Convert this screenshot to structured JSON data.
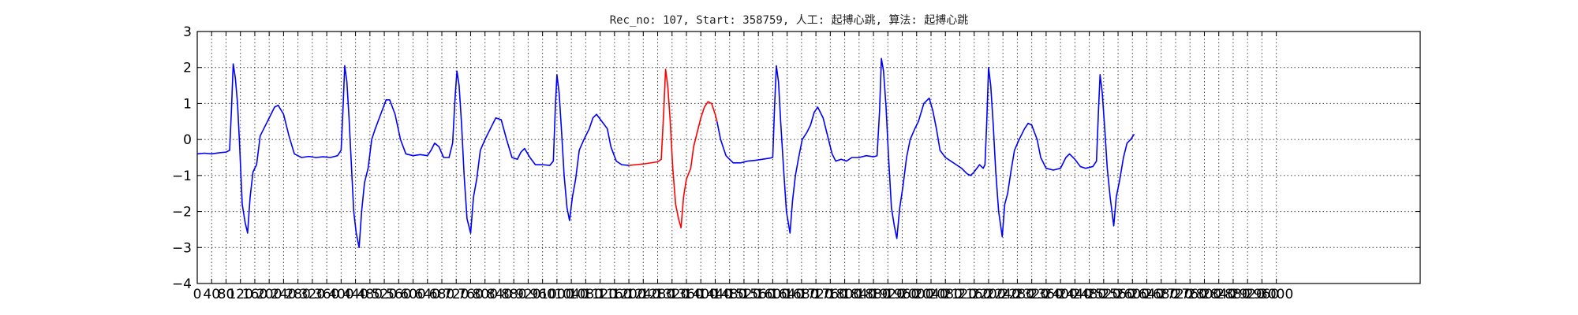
{
  "chart_data": {
    "type": "line",
    "title": "Rec_no: 107, Start: 358759, 人工: 起搏心跳, 算法: 起搏心跳",
    "xlabel": "",
    "ylabel": "",
    "xlim": [
      0,
      3400
    ],
    "ylim": [
      -4,
      3
    ],
    "yticks": [
      3,
      2,
      1,
      0,
      -1,
      -2,
      -3,
      -4
    ],
    "xticks": [
      0,
      40,
      80,
      120,
      160,
      200,
      240,
      280,
      320,
      360,
      400,
      440,
      480,
      520,
      560,
      600,
      640,
      680,
      720,
      760,
      800,
      840,
      880,
      920,
      960,
      1000,
      1040,
      1080,
      1120,
      1160,
      1200,
      1240,
      1280,
      1320,
      1360,
      1400,
      1440,
      1480,
      1520,
      1560,
      1600,
      1640,
      1680,
      1720,
      1760,
      1800,
      1840,
      1880,
      1920,
      1960,
      2000,
      2040,
      2080,
      2120,
      2160,
      2200,
      2240,
      2280,
      2320,
      2360,
      2400,
      2440,
      2480,
      2520,
      2560,
      2600,
      2640,
      2680,
      2720,
      2760,
      2800,
      2840,
      2880,
      2920,
      2960,
      3000
    ],
    "grid": true,
    "series": [
      {
        "color": "#0000ff",
        "points": [
          [
            0,
            -0.4
          ],
          [
            20,
            -0.38
          ],
          [
            40,
            -0.4
          ],
          [
            60,
            -0.37
          ],
          [
            80,
            -0.35
          ],
          [
            90,
            -0.3
          ],
          [
            95,
            0.8
          ],
          [
            100,
            2.1
          ],
          [
            106,
            1.7
          ],
          [
            112,
            1.0
          ],
          [
            118,
            -0.2
          ],
          [
            125,
            -1.8
          ],
          [
            133,
            -2.3
          ],
          [
            140,
            -2.6
          ],
          [
            147,
            -1.6
          ],
          [
            155,
            -0.9
          ],
          [
            165,
            -0.7
          ],
          [
            175,
            0.1
          ],
          [
            185,
            0.3
          ],
          [
            200,
            0.6
          ],
          [
            215,
            0.9
          ],
          [
            225,
            0.95
          ],
          [
            240,
            0.7
          ],
          [
            255,
            0.1
          ],
          [
            270,
            -0.4
          ],
          [
            290,
            -0.5
          ],
          [
            310,
            -0.47
          ],
          [
            330,
            -0.5
          ],
          [
            350,
            -0.48
          ],
          [
            370,
            -0.5
          ],
          [
            390,
            -0.45
          ],
          [
            400,
            -0.3
          ],
          [
            405,
            0.8
          ],
          [
            410,
            2.05
          ],
          [
            416,
            1.6
          ],
          [
            422,
            0.6
          ],
          [
            428,
            -0.6
          ],
          [
            435,
            -2.0
          ],
          [
            442,
            -2.6
          ],
          [
            450,
            -3.0
          ],
          [
            457,
            -2.0
          ],
          [
            465,
            -1.2
          ],
          [
            475,
            -0.8
          ],
          [
            485,
            0.0
          ],
          [
            495,
            0.3
          ],
          [
            510,
            0.7
          ],
          [
            525,
            1.1
          ],
          [
            535,
            1.1
          ],
          [
            550,
            0.7
          ],
          [
            565,
            0.0
          ],
          [
            580,
            -0.4
          ],
          [
            600,
            -0.45
          ],
          [
            620,
            -0.42
          ],
          [
            640,
            -0.45
          ],
          [
            650,
            -0.3
          ],
          [
            660,
            -0.1
          ],
          [
            672,
            -0.2
          ],
          [
            685,
            -0.5
          ],
          [
            700,
            -0.5
          ],
          [
            710,
            -0.1
          ],
          [
            717,
            1.2
          ],
          [
            722,
            1.9
          ],
          [
            728,
            1.5
          ],
          [
            735,
            0.4
          ],
          [
            742,
            -1.0
          ],
          [
            750,
            -2.2
          ],
          [
            760,
            -2.6
          ],
          [
            768,
            -1.6
          ],
          [
            777,
            -1.1
          ],
          [
            787,
            -0.3
          ],
          [
            800,
            0.0
          ],
          [
            815,
            0.3
          ],
          [
            830,
            0.6
          ],
          [
            845,
            0.55
          ],
          [
            860,
            0.0
          ],
          [
            875,
            -0.5
          ],
          [
            890,
            -0.55
          ],
          [
            900,
            -0.35
          ],
          [
            910,
            -0.25
          ],
          [
            925,
            -0.5
          ],
          [
            940,
            -0.7
          ],
          [
            960,
            -0.7
          ],
          [
            980,
            -0.72
          ],
          [
            990,
            -0.6
          ],
          [
            996,
            1.0
          ],
          [
            1000,
            1.8
          ],
          [
            1006,
            1.3
          ],
          [
            1013,
            0.2
          ],
          [
            1020,
            -1.0
          ],
          [
            1028,
            -1.9
          ],
          [
            1035,
            -2.25
          ],
          [
            1043,
            -1.6
          ],
          [
            1052,
            -1.1
          ],
          [
            1062,
            -0.3
          ],
          [
            1075,
            0.0
          ],
          [
            1090,
            0.3
          ],
          [
            1100,
            0.6
          ],
          [
            1110,
            0.7
          ],
          [
            1125,
            0.5
          ],
          [
            1140,
            0.3
          ],
          [
            1150,
            -0.2
          ],
          [
            1165,
            -0.6
          ],
          [
            1180,
            -0.7
          ],
          [
            1200,
            -0.72
          ]
        ]
      },
      {
        "color": "#ff0000",
        "points": [
          [
            1200,
            -0.72
          ],
          [
            1220,
            -0.7
          ],
          [
            1240,
            -0.68
          ],
          [
            1260,
            -0.65
          ],
          [
            1280,
            -0.62
          ],
          [
            1290,
            -0.55
          ],
          [
            1297,
            0.8
          ],
          [
            1302,
            1.95
          ],
          [
            1308,
            1.5
          ],
          [
            1315,
            0.5
          ],
          [
            1322,
            -0.8
          ],
          [
            1330,
            -1.8
          ],
          [
            1338,
            -2.2
          ],
          [
            1345,
            -2.45
          ],
          [
            1352,
            -1.6
          ],
          [
            1360,
            -1.1
          ],
          [
            1372,
            -0.8
          ],
          [
            1380,
            -0.2
          ],
          [
            1390,
            0.2
          ],
          [
            1400,
            0.6
          ],
          [
            1410,
            0.9
          ],
          [
            1420,
            1.05
          ],
          [
            1430,
            1.0
          ],
          [
            1440,
            0.7
          ],
          [
            1445,
            0.5
          ]
        ]
      },
      {
        "color": "#0000ff",
        "points": [
          [
            1445,
            0.5
          ],
          [
            1455,
            0.0
          ],
          [
            1470,
            -0.45
          ],
          [
            1490,
            -0.65
          ],
          [
            1510,
            -0.65
          ],
          [
            1530,
            -0.6
          ],
          [
            1550,
            -0.58
          ],
          [
            1570,
            -0.55
          ],
          [
            1590,
            -0.52
          ],
          [
            1600,
            -0.5
          ],
          [
            1605,
            0.9
          ],
          [
            1610,
            2.05
          ],
          [
            1616,
            1.6
          ],
          [
            1622,
            0.5
          ],
          [
            1630,
            -0.8
          ],
          [
            1638,
            -2.0
          ],
          [
            1648,
            -2.6
          ],
          [
            1655,
            -1.7
          ],
          [
            1663,
            -1.0
          ],
          [
            1672,
            -0.5
          ],
          [
            1682,
            0.0
          ],
          [
            1695,
            0.2
          ],
          [
            1705,
            0.4
          ],
          [
            1715,
            0.75
          ],
          [
            1725,
            0.9
          ],
          [
            1740,
            0.6
          ],
          [
            1755,
            0.0
          ],
          [
            1765,
            -0.4
          ],
          [
            1775,
            -0.6
          ],
          [
            1790,
            -0.55
          ],
          [
            1805,
            -0.6
          ],
          [
            1820,
            -0.5
          ],
          [
            1840,
            -0.5
          ],
          [
            1860,
            -0.45
          ],
          [
            1880,
            -0.48
          ],
          [
            1890,
            -0.45
          ],
          [
            1897,
            0.8
          ],
          [
            1902,
            2.25
          ],
          [
            1908,
            1.9
          ],
          [
            1915,
            0.9
          ],
          [
            1922,
            -0.5
          ],
          [
            1930,
            -1.9
          ],
          [
            1938,
            -2.4
          ],
          [
            1945,
            -2.75
          ],
          [
            1953,
            -1.9
          ],
          [
            1962,
            -1.3
          ],
          [
            1972,
            -0.5
          ],
          [
            1982,
            0.0
          ],
          [
            1995,
            0.3
          ],
          [
            2005,
            0.5
          ],
          [
            2020,
            1.0
          ],
          [
            2035,
            1.15
          ],
          [
            2045,
            0.8
          ],
          [
            2055,
            0.3
          ],
          [
            2065,
            -0.3
          ],
          [
            2080,
            -0.5
          ],
          [
            2095,
            -0.6
          ],
          [
            2110,
            -0.7
          ],
          [
            2125,
            -0.8
          ],
          [
            2140,
            -0.95
          ],
          [
            2150,
            -1.0
          ],
          [
            2160,
            -0.9
          ],
          [
            2175,
            -0.7
          ],
          [
            2185,
            -0.8
          ],
          [
            2190,
            -0.7
          ],
          [
            2195,
            0.5
          ],
          [
            2200,
            2.0
          ],
          [
            2206,
            1.5
          ],
          [
            2213,
            0.4
          ],
          [
            2220,
            -0.9
          ],
          [
            2228,
            -2.0
          ],
          [
            2238,
            -2.7
          ],
          [
            2245,
            -1.8
          ],
          [
            2253,
            -1.5
          ],
          [
            2262,
            -0.9
          ],
          [
            2272,
            -0.3
          ],
          [
            2285,
            0.0
          ],
          [
            2300,
            0.3
          ],
          [
            2310,
            0.45
          ],
          [
            2320,
            0.4
          ],
          [
            2335,
            0.0
          ],
          [
            2345,
            -0.5
          ],
          [
            2360,
            -0.8
          ],
          [
            2380,
            -0.85
          ],
          [
            2400,
            -0.8
          ],
          [
            2415,
            -0.5
          ],
          [
            2425,
            -0.4
          ],
          [
            2440,
            -0.55
          ],
          [
            2455,
            -0.75
          ],
          [
            2470,
            -0.8
          ],
          [
            2490,
            -0.75
          ],
          [
            2500,
            -0.6
          ],
          [
            2506,
            0.9
          ],
          [
            2510,
            1.8
          ],
          [
            2516,
            1.3
          ],
          [
            2523,
            0.3
          ],
          [
            2530,
            -0.8
          ],
          [
            2538,
            -1.6
          ],
          [
            2548,
            -2.4
          ],
          [
            2555,
            -1.6
          ],
          [
            2565,
            -1.1
          ],
          [
            2575,
            -0.5
          ],
          [
            2585,
            -0.1
          ],
          [
            2595,
            0.0
          ],
          [
            2605,
            0.15
          ]
        ]
      }
    ]
  }
}
